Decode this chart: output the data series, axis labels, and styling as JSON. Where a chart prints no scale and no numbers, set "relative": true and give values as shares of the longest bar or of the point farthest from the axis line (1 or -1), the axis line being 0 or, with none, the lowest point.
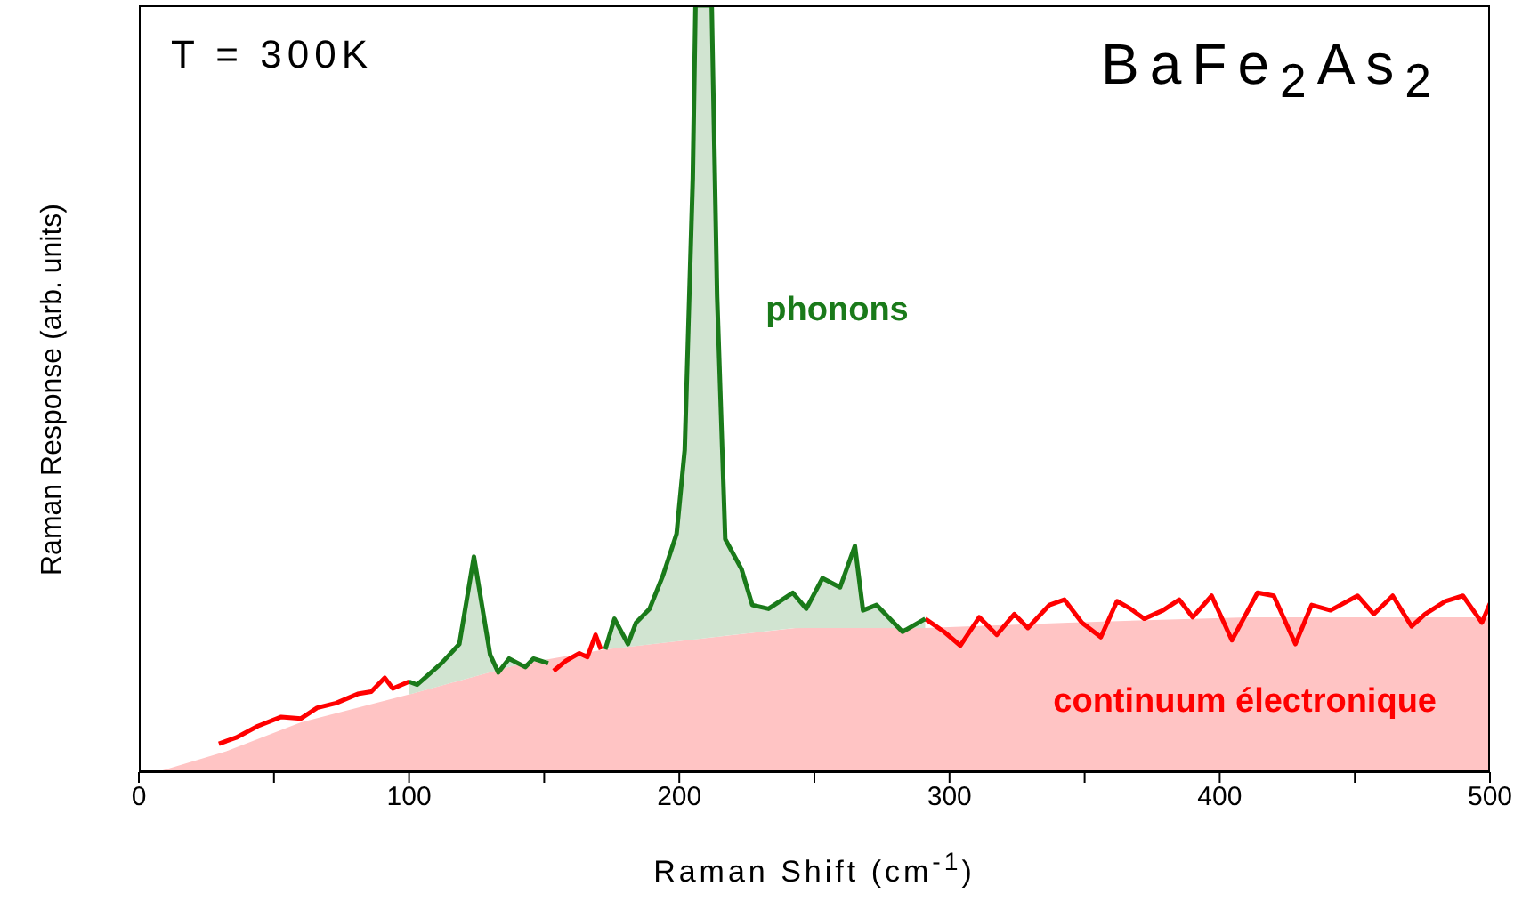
{
  "chart_data": {
    "type": "area",
    "xlabel": "Raman Shift (cm$^{-1}$)",
    "ylabel": "Raman Response (arb. units)",
    "relative": true,
    "xlim": [
      0,
      500
    ],
    "xticks": [
      0,
      {
        "value": 50,
        "label": null
      },
      100,
      {
        "value": 150,
        "label": null
      },
      200,
      {
        "value": 250,
        "label": null
      },
      300,
      {
        "value": 350,
        "label": null
      },
      400,
      {
        "value": 450,
        "label": null
      },
      500
    ],
    "annotations": [
      "T = 300K",
      "BaFe$_{2}$As$_{2}$"
    ],
    "series": [
      {
        "name": "continuum électronique",
        "color": "#ffc4c4",
        "x": [
          6.6,
          33,
          60,
          100.8,
          140,
          172.6,
          243,
          291,
          344,
          410,
          497,
          500
        ],
        "values": [
          0,
          0.028,
          0.065,
          0.102,
          0.14,
          0.16,
          0.188,
          0.188,
          0.195,
          0.202,
          0.202,
          0.202
        ]
      },
      {
        "type": "line",
        "color": "#ff0000",
        "x": [
          29.6,
          36,
          44,
          52.7,
          60,
          66,
          73,
          81,
          86,
          91,
          94,
          100,
          127,
          153.5,
          158,
          163,
          166,
          169,
          171,
          230,
          291,
          298,
          304,
          311,
          317.5,
          324,
          329,
          337,
          342.5,
          349,
          356,
          362,
          367,
          372,
          379,
          385,
          390,
          397,
          404.5,
          414,
          420,
          428,
          434,
          441,
          451,
          457,
          464,
          471,
          476,
          483.5,
          490,
          497,
          500
        ],
        "values": [
          0.037,
          0.045,
          0.06,
          0.072,
          0.07,
          0.084,
          0.09,
          0.102,
          0.105,
          0.123,
          0.109,
          0.118,
          null,
          0.132,
          0.145,
          0.155,
          0.15,
          0.179,
          0.16,
          null,
          0.2,
          0.183,
          0.165,
          0.202,
          0.179,
          0.206,
          0.188,
          0.218,
          0.225,
          0.195,
          0.176,
          0.223,
          0.213,
          0.2,
          0.211,
          0.225,
          0.202,
          0.23,
          0.172,
          0.234,
          0.23,
          0.167,
          0.218,
          0.211,
          0.23,
          0.206,
          0.23,
          0.19,
          0.206,
          0.223,
          0.23,
          0.195,
          0.22
        ]
      },
      {
        "name": "phonons",
        "color": "#1a7a1a",
        "x": [
          100,
          103,
          112,
          118.6,
          124,
          130,
          133,
          137,
          143,
          146,
          151.5,
          162,
          172.6,
          176,
          181,
          184,
          189,
          194,
          199,
          202,
          205,
          206,
          208,
          212,
          214,
          217,
          223,
          227,
          233,
          242,
          247,
          253,
          259.5,
          265,
          268,
          273,
          282.6,
          291
        ],
        "values": [
          0.118,
          0.114,
          0.142,
          0.167,
          0.281,
          0.153,
          0.13,
          0.148,
          0.137,
          0.148,
          0.142,
          null,
          0.16,
          0.2,
          0.167,
          0.195,
          0.213,
          0.257,
          0.311,
          0.42,
          0.775,
          1,
          1,
          1,
          0.62,
          0.304,
          0.265,
          0.218,
          0.213,
          0.234,
          0.213,
          0.253,
          0.241,
          0.295,
          0.211,
          0.218,
          0.183,
          0.2
        ]
      }
    ]
  }
}
